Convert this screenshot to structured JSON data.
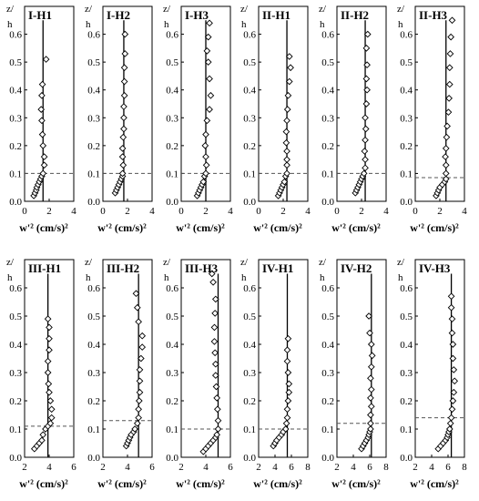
{
  "chart_data": [
    {
      "type": "scatter",
      "title": "I-H1",
      "xlabel": "w'² (cm/s)²",
      "ylabel_top": "z/",
      "ylabel_bottom": "h",
      "xlim": [
        0,
        4
      ],
      "xticks": [
        0,
        2,
        4
      ],
      "ylim": [
        0,
        0.7
      ],
      "yticks": [
        0,
        0.1,
        0.2,
        0.3,
        0.4,
        0.5,
        0.6
      ],
      "threshold_z": 0.1,
      "line_x": 1.5,
      "points": [
        [
          0.75,
          0.02
        ],
        [
          0.85,
          0.03
        ],
        [
          0.95,
          0.04
        ],
        [
          1.0,
          0.05
        ],
        [
          1.1,
          0.06
        ],
        [
          1.2,
          0.07
        ],
        [
          1.3,
          0.08
        ],
        [
          1.4,
          0.09
        ],
        [
          1.5,
          0.1
        ],
        [
          1.6,
          0.13
        ],
        [
          1.6,
          0.16
        ],
        [
          1.5,
          0.2
        ],
        [
          1.45,
          0.24
        ],
        [
          1.4,
          0.29
        ],
        [
          1.35,
          0.33
        ],
        [
          1.4,
          0.38
        ],
        [
          1.45,
          0.42
        ],
        [
          1.75,
          0.51
        ]
      ]
    },
    {
      "type": "scatter",
      "title": "I-H2",
      "xlabel": "w'² (cm/s)²",
      "ylabel_top": "z/",
      "ylabel_bottom": "h",
      "xlim": [
        0,
        4
      ],
      "xticks": [
        0,
        2,
        4
      ],
      "ylim": [
        0,
        0.7
      ],
      "yticks": [
        0,
        0.1,
        0.2,
        0.3,
        0.4,
        0.5,
        0.6
      ],
      "threshold_z": 0.1,
      "line_x": 1.7,
      "points": [
        [
          1.0,
          0.03
        ],
        [
          1.1,
          0.04
        ],
        [
          1.2,
          0.05
        ],
        [
          1.3,
          0.06
        ],
        [
          1.4,
          0.07
        ],
        [
          1.5,
          0.08
        ],
        [
          1.6,
          0.09
        ],
        [
          1.6,
          0.1
        ],
        [
          1.65,
          0.13
        ],
        [
          1.6,
          0.16
        ],
        [
          1.6,
          0.19
        ],
        [
          1.65,
          0.23
        ],
        [
          1.7,
          0.26
        ],
        [
          1.7,
          0.3
        ],
        [
          1.7,
          0.34
        ],
        [
          1.75,
          0.38
        ],
        [
          1.75,
          0.43
        ],
        [
          1.75,
          0.48
        ],
        [
          1.8,
          0.53
        ],
        [
          1.8,
          0.6
        ]
      ]
    },
    {
      "type": "scatter",
      "title": "I-H3",
      "xlabel": "w'² (cm/s)²",
      "ylabel_top": "z/",
      "ylabel_bottom": "h",
      "xlim": [
        0,
        4
      ],
      "xticks": [
        0,
        2,
        4
      ],
      "ylim": [
        0,
        0.7
      ],
      "yticks": [
        0,
        0.1,
        0.2,
        0.3,
        0.4,
        0.5,
        0.6
      ],
      "threshold_z": 0.1,
      "line_x": 2.0,
      "points": [
        [
          1.3,
          0.02
        ],
        [
          1.4,
          0.03
        ],
        [
          1.5,
          0.04
        ],
        [
          1.6,
          0.05
        ],
        [
          1.7,
          0.06
        ],
        [
          1.8,
          0.07
        ],
        [
          1.9,
          0.09
        ],
        [
          2.0,
          0.1
        ],
        [
          2.05,
          0.13
        ],
        [
          2.0,
          0.16
        ],
        [
          1.95,
          0.2
        ],
        [
          2.0,
          0.24
        ],
        [
          2.1,
          0.29
        ],
        [
          2.3,
          0.33
        ],
        [
          2.4,
          0.38
        ],
        [
          2.3,
          0.44
        ],
        [
          2.2,
          0.5
        ],
        [
          2.1,
          0.54
        ],
        [
          2.2,
          0.59
        ],
        [
          2.3,
          0.64
        ]
      ]
    },
    {
      "type": "scatter",
      "title": "II-H1",
      "xlabel": "w'² (cm/s)²",
      "ylabel_top": "z/",
      "ylabel_bottom": "h",
      "xlim": [
        0,
        4
      ],
      "xticks": [
        0,
        2,
        4
      ],
      "ylim": [
        0,
        0.7
      ],
      "yticks": [
        0,
        0.1,
        0.2,
        0.3,
        0.4,
        0.5,
        0.6
      ],
      "threshold_z": 0.1,
      "line_x": 2.3,
      "points": [
        [
          1.6,
          0.02
        ],
        [
          1.7,
          0.03
        ],
        [
          1.8,
          0.04
        ],
        [
          1.9,
          0.05
        ],
        [
          2.0,
          0.06
        ],
        [
          2.1,
          0.07
        ],
        [
          2.2,
          0.09
        ],
        [
          2.3,
          0.1
        ],
        [
          2.3,
          0.13
        ],
        [
          2.3,
          0.15
        ],
        [
          2.3,
          0.18
        ],
        [
          2.25,
          0.21
        ],
        [
          2.25,
          0.25
        ],
        [
          2.3,
          0.29
        ],
        [
          2.35,
          0.33
        ],
        [
          2.4,
          0.38
        ],
        [
          2.5,
          0.43
        ],
        [
          2.6,
          0.48
        ],
        [
          2.5,
          0.52
        ]
      ]
    },
    {
      "type": "scatter",
      "title": "II-H2",
      "xlabel": "w'² (cm/s)²",
      "ylabel_top": "z/",
      "ylabel_bottom": "h",
      "xlim": [
        0,
        4
      ],
      "xticks": [
        0,
        2,
        4
      ],
      "ylim": [
        0,
        0.7
      ],
      "yticks": [
        0,
        0.1,
        0.2,
        0.3,
        0.4,
        0.5,
        0.6
      ],
      "threshold_z": 0.1,
      "line_x": 2.3,
      "points": [
        [
          1.5,
          0.03
        ],
        [
          1.6,
          0.04
        ],
        [
          1.7,
          0.05
        ],
        [
          1.8,
          0.06
        ],
        [
          1.9,
          0.07
        ],
        [
          2.0,
          0.08
        ],
        [
          2.1,
          0.09
        ],
        [
          2.2,
          0.1
        ],
        [
          2.3,
          0.12
        ],
        [
          2.3,
          0.15
        ],
        [
          2.25,
          0.18
        ],
        [
          2.3,
          0.22
        ],
        [
          2.35,
          0.26
        ],
        [
          2.3,
          0.3
        ],
        [
          2.4,
          0.35
        ],
        [
          2.45,
          0.4
        ],
        [
          2.4,
          0.44
        ],
        [
          2.45,
          0.49
        ],
        [
          2.4,
          0.55
        ],
        [
          2.5,
          0.6
        ]
      ]
    },
    {
      "type": "scatter",
      "title": "II-H3",
      "xlabel": "w'² (cm/s)²",
      "ylabel_top": "z/",
      "ylabel_bottom": "h",
      "xlim": [
        0,
        4
      ],
      "xticks": [
        0,
        2,
        4
      ],
      "ylim": [
        0,
        0.7
      ],
      "yticks": [
        0,
        0.1,
        0.2,
        0.3,
        0.4,
        0.5,
        0.6
      ],
      "threshold_z": 0.085,
      "line_x": 2.5,
      "points": [
        [
          1.7,
          0.02
        ],
        [
          1.8,
          0.03
        ],
        [
          1.9,
          0.04
        ],
        [
          2.0,
          0.05
        ],
        [
          2.2,
          0.06
        ],
        [
          2.4,
          0.07
        ],
        [
          2.5,
          0.08
        ],
        [
          2.5,
          0.1
        ],
        [
          2.5,
          0.13
        ],
        [
          2.45,
          0.16
        ],
        [
          2.5,
          0.19
        ],
        [
          2.55,
          0.23
        ],
        [
          2.6,
          0.27
        ],
        [
          2.7,
          0.32
        ],
        [
          2.75,
          0.37
        ],
        [
          2.8,
          0.42
        ],
        [
          2.8,
          0.48
        ],
        [
          2.85,
          0.53
        ],
        [
          2.9,
          0.59
        ],
        [
          3.0,
          0.65
        ]
      ]
    },
    {
      "type": "scatter",
      "title": "III-H1",
      "xlabel": "w'² (cm/s)²",
      "ylabel_top": "z/",
      "ylabel_bottom": "h",
      "xlim": [
        2,
        6
      ],
      "xticks": [
        2,
        4,
        6
      ],
      "ylim": [
        0,
        0.7
      ],
      "yticks": [
        0,
        0.1,
        0.2,
        0.3,
        0.4,
        0.5,
        0.6
      ],
      "threshold_z": 0.11,
      "line_x": 3.9,
      "points": [
        [
          2.8,
          0.03
        ],
        [
          3.0,
          0.04
        ],
        [
          3.2,
          0.05
        ],
        [
          3.4,
          0.06
        ],
        [
          3.5,
          0.08
        ],
        [
          3.7,
          0.1
        ],
        [
          3.9,
          0.11
        ],
        [
          4.1,
          0.12
        ],
        [
          4.2,
          0.14
        ],
        [
          4.2,
          0.17
        ],
        [
          4.1,
          0.2
        ],
        [
          4.0,
          0.23
        ],
        [
          3.95,
          0.26
        ],
        [
          3.9,
          0.3
        ],
        [
          3.9,
          0.34
        ],
        [
          4.0,
          0.38
        ],
        [
          4.0,
          0.42
        ],
        [
          4.0,
          0.46
        ],
        [
          3.9,
          0.49
        ]
      ]
    },
    {
      "type": "scatter",
      "title": "III-H2",
      "xlabel": "w'² (cm/s)²",
      "ylabel_top": "z/",
      "ylabel_bottom": "h",
      "xlim": [
        2,
        6
      ],
      "xticks": [
        2,
        4,
        6
      ],
      "ylim": [
        0,
        0.7
      ],
      "yticks": [
        0,
        0.1,
        0.2,
        0.3,
        0.4,
        0.5,
        0.6
      ],
      "threshold_z": 0.13,
      "line_x": 4.9,
      "points": [
        [
          3.9,
          0.04
        ],
        [
          4.0,
          0.05
        ],
        [
          4.1,
          0.06
        ],
        [
          4.2,
          0.07
        ],
        [
          4.3,
          0.08
        ],
        [
          4.5,
          0.09
        ],
        [
          4.6,
          0.1
        ],
        [
          4.8,
          0.12
        ],
        [
          4.9,
          0.14
        ],
        [
          4.9,
          0.17
        ],
        [
          4.95,
          0.2
        ],
        [
          5.0,
          0.23
        ],
        [
          5.0,
          0.27
        ],
        [
          5.0,
          0.31
        ],
        [
          5.1,
          0.35
        ],
        [
          5.2,
          0.39
        ],
        [
          5.2,
          0.43
        ],
        [
          4.9,
          0.48
        ],
        [
          4.8,
          0.53
        ],
        [
          4.7,
          0.58
        ]
      ]
    },
    {
      "type": "scatter",
      "title": "III-H3",
      "xlabel": "w'² (cm/s)²",
      "ylabel_top": "z/",
      "ylabel_bottom": "h",
      "xlim": [
        2,
        6
      ],
      "xticks": [
        2,
        4,
        6
      ],
      "ylim": [
        0,
        0.7
      ],
      "yticks": [
        0,
        0.1,
        0.2,
        0.3,
        0.4,
        0.5,
        0.6
      ],
      "threshold_z": 0.1,
      "line_x": 5.0,
      "points": [
        [
          3.8,
          0.02
        ],
        [
          4.0,
          0.03
        ],
        [
          4.2,
          0.04
        ],
        [
          4.4,
          0.05
        ],
        [
          4.6,
          0.06
        ],
        [
          4.8,
          0.07
        ],
        [
          4.9,
          0.08
        ],
        [
          5.0,
          0.1
        ],
        [
          5.0,
          0.13
        ],
        [
          4.95,
          0.17
        ],
        [
          4.9,
          0.21
        ],
        [
          4.85,
          0.25
        ],
        [
          4.8,
          0.29
        ],
        [
          4.8,
          0.33
        ],
        [
          4.75,
          0.37
        ],
        [
          4.7,
          0.41
        ],
        [
          4.7,
          0.46
        ],
        [
          4.75,
          0.51
        ],
        [
          4.8,
          0.56
        ],
        [
          4.6,
          0.62
        ],
        [
          4.5,
          0.65
        ]
      ]
    },
    {
      "type": "scatter",
      "title": "IV-H1",
      "xlabel": "w'² (cm/s)²",
      "ylabel_top": "z/",
      "ylabel_bottom": "h",
      "xlim": [
        2,
        8
      ],
      "xticks": [
        2,
        4,
        6,
        8
      ],
      "ylim": [
        0,
        0.7
      ],
      "yticks": [
        0,
        0.1,
        0.2,
        0.3,
        0.4,
        0.5,
        0.6
      ],
      "threshold_z": 0.1,
      "line_x": 5.5,
      "points": [
        [
          3.8,
          0.04
        ],
        [
          4.0,
          0.05
        ],
        [
          4.2,
          0.06
        ],
        [
          4.5,
          0.07
        ],
        [
          4.8,
          0.08
        ],
        [
          5.0,
          0.09
        ],
        [
          5.3,
          0.1
        ],
        [
          5.4,
          0.12
        ],
        [
          5.5,
          0.14
        ],
        [
          5.5,
          0.17
        ],
        [
          5.6,
          0.2
        ],
        [
          5.7,
          0.23
        ],
        [
          5.7,
          0.26
        ],
        [
          5.6,
          0.3
        ],
        [
          5.5,
          0.34
        ],
        [
          5.5,
          0.38
        ],
        [
          5.6,
          0.42
        ]
      ]
    },
    {
      "type": "scatter",
      "title": "IV-H2",
      "xlabel": "w'² (cm/s)²",
      "ylabel_top": "z/",
      "ylabel_bottom": "h",
      "xlim": [
        2,
        8
      ],
      "xticks": [
        2,
        4,
        6,
        8
      ],
      "ylim": [
        0,
        0.7
      ],
      "yticks": [
        0,
        0.1,
        0.2,
        0.3,
        0.4,
        0.5,
        0.6
      ],
      "threshold_z": 0.12,
      "line_x": 6.2,
      "points": [
        [
          5.0,
          0.03
        ],
        [
          5.2,
          0.04
        ],
        [
          5.4,
          0.05
        ],
        [
          5.6,
          0.06
        ],
        [
          5.8,
          0.07
        ],
        [
          5.9,
          0.08
        ],
        [
          6.0,
          0.09
        ],
        [
          6.1,
          0.1
        ],
        [
          6.1,
          0.12
        ],
        [
          6.1,
          0.15
        ],
        [
          6.2,
          0.18
        ],
        [
          6.1,
          0.21
        ],
        [
          6.2,
          0.24
        ],
        [
          6.1,
          0.28
        ],
        [
          6.2,
          0.32
        ],
        [
          6.3,
          0.36
        ],
        [
          6.2,
          0.4
        ],
        [
          6.0,
          0.44
        ],
        [
          5.9,
          0.5
        ]
      ]
    },
    {
      "type": "scatter",
      "title": "IV-H3",
      "xlabel": "w'² (cm/s)²",
      "ylabel_top": "z/",
      "ylabel_bottom": "h",
      "xlim": [
        2,
        8
      ],
      "xticks": [
        2,
        4,
        6,
        8
      ],
      "ylim": [
        0,
        0.7
      ],
      "yticks": [
        0,
        0.1,
        0.2,
        0.3,
        0.4,
        0.5,
        0.6
      ],
      "threshold_z": 0.14,
      "line_x": 6.4,
      "points": [
        [
          4.8,
          0.03
        ],
        [
          5.1,
          0.04
        ],
        [
          5.4,
          0.05
        ],
        [
          5.7,
          0.06
        ],
        [
          5.9,
          0.07
        ],
        [
          6.0,
          0.08
        ],
        [
          6.1,
          0.09
        ],
        [
          6.2,
          0.1
        ],
        [
          6.3,
          0.12
        ],
        [
          6.4,
          0.14
        ],
        [
          6.5,
          0.17
        ],
        [
          6.6,
          0.2
        ],
        [
          6.7,
          0.23
        ],
        [
          6.8,
          0.27
        ],
        [
          6.7,
          0.31
        ],
        [
          6.6,
          0.35
        ],
        [
          6.6,
          0.4
        ],
        [
          6.5,
          0.44
        ],
        [
          6.5,
          0.49
        ],
        [
          6.4,
          0.53
        ],
        [
          6.4,
          0.57
        ]
      ]
    }
  ]
}
